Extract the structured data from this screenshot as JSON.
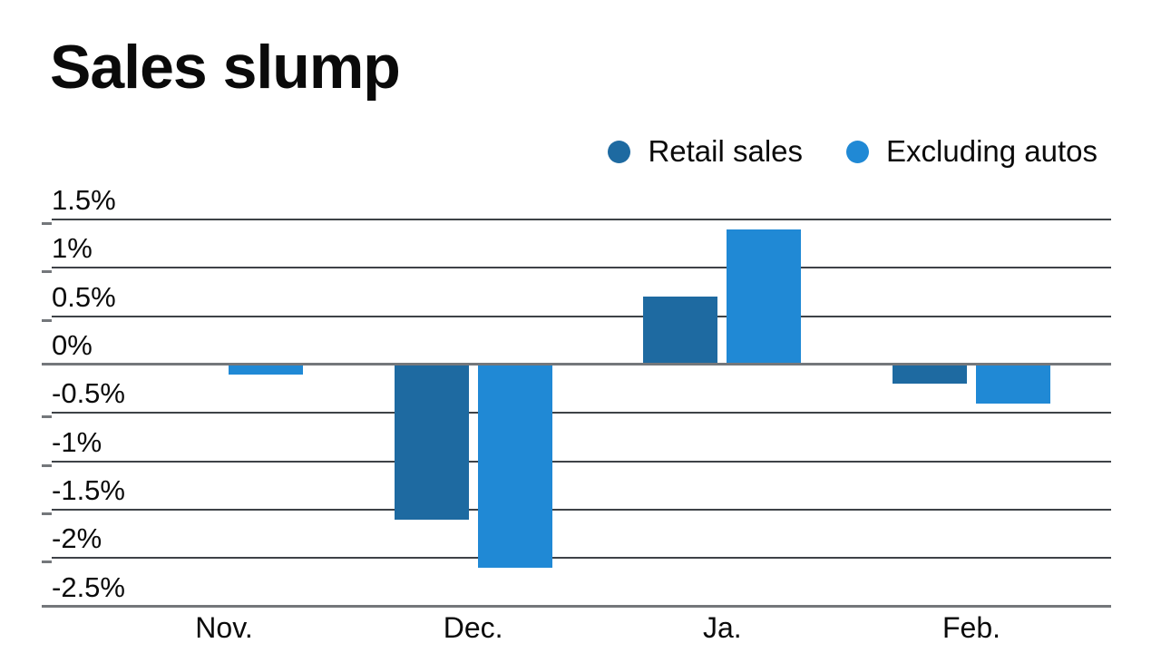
{
  "title": "Sales slump",
  "chart_data": {
    "type": "bar",
    "title": "Sales slump",
    "categories": [
      "Nov.",
      "Dec.",
      "Ja.",
      "Feb."
    ],
    "series": [
      {
        "name": "Retail sales",
        "color": "#1e6aa1",
        "values": [
          0.0,
          -1.6,
          0.7,
          -0.2
        ]
      },
      {
        "name": "Excluding autos",
        "color": "#2089d5",
        "values": [
          -0.1,
          -2.1,
          1.4,
          -0.4
        ]
      }
    ],
    "unit": "percent, monthly change",
    "ylim": [
      -2.5,
      1.5
    ],
    "yticks": [
      {
        "value": 1.5,
        "label": "1.5%"
      },
      {
        "value": 1.0,
        "label": "1%"
      },
      {
        "value": 0.5,
        "label": "0.5%"
      },
      {
        "value": 0.0,
        "label": "0%"
      },
      {
        "value": -0.5,
        "label": "-0.5%"
      },
      {
        "value": -1.0,
        "label": "-1%"
      },
      {
        "value": -1.5,
        "label": "-1.5%"
      },
      {
        "value": -2.0,
        "label": "-2%"
      },
      {
        "value": -2.5,
        "label": "-2.5%"
      }
    ],
    "grid": "horizontal",
    "legend_position": "top-right",
    "colors": {
      "grid": "#3e4247",
      "zero_axis": "#74777b",
      "text": "#0a0a0a",
      "background": "#ffffff"
    }
  }
}
